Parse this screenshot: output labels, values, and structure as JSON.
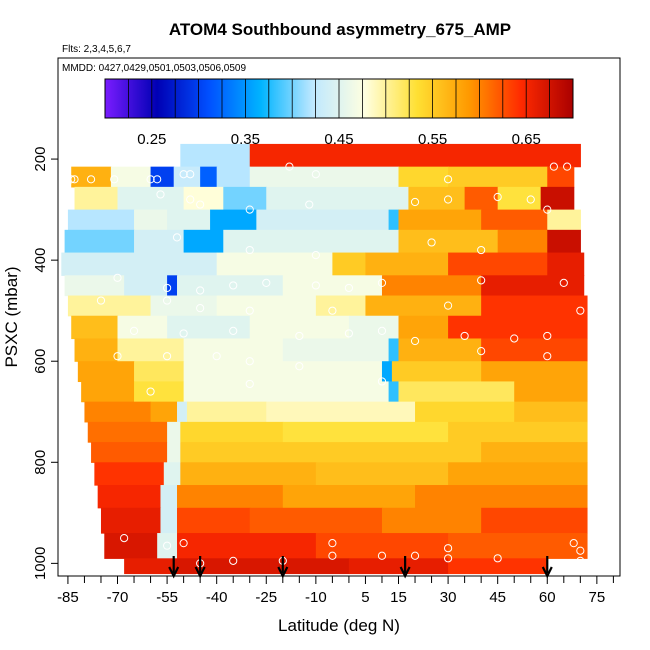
{
  "chart_data": {
    "type": "heatmap",
    "title": "ATOM4 Southbound asymmetry_675_AMP",
    "subtitle": "Flts: 2,3,4,5,6,7",
    "inset_label": "MMDD: 0427,0429,0501,0503,0506,0509",
    "xlabel": "Latitude (deg N)",
    "ylabel": "PSXC (mbar)",
    "xlim": [
      -88,
      82
    ],
    "ylim": [
      1025,
      0
    ],
    "x_ticks": [
      -85,
      -70,
      -55,
      -40,
      -25,
      -10,
      5,
      15,
      30,
      45,
      60,
      75
    ],
    "x_minor_ticks": [
      -80,
      -75,
      -65,
      -60,
      -50,
      -45,
      -35,
      -30,
      -20,
      -15,
      -5,
      0,
      10,
      20,
      25,
      35,
      40,
      50,
      55,
      65,
      70,
      80
    ],
    "y_ticks": [
      200,
      400,
      600,
      800,
      1000
    ],
    "colorbar": {
      "min": 0.2,
      "max": 0.7,
      "ticks": [
        0.25,
        0.35,
        0.45,
        0.55,
        0.65
      ],
      "tick_labels": [
        "0.25",
        "0.35",
        "0.45",
        "0.55",
        "0.65"
      ],
      "stops": [
        "#7a1cff",
        "#0000b4",
        "#0050ff",
        "#00b4ff",
        "#bfe8ff",
        "#ffffe0",
        "#ffe033",
        "#ff9900",
        "#ff2a00",
        "#aa0000"
      ]
    },
    "profile_arrows_lat": [
      -53,
      -45,
      -20,
      17,
      60
    ],
    "bands": [
      {
        "p": [
          170,
          215
        ],
        "segs": [
          [
            -51,
            -30,
            0.42
          ],
          [
            -30,
            70,
            0.65
          ]
        ]
      },
      {
        "p": [
          215,
          255
        ],
        "segs": [
          [
            -84,
            -72,
            0.57
          ],
          [
            -72,
            -60,
            0.47
          ],
          [
            -60,
            -53,
            0.3
          ],
          [
            -53,
            -45,
            0.43
          ],
          [
            -45,
            -40,
            0.32
          ],
          [
            -40,
            -30,
            0.42
          ],
          [
            -30,
            15,
            0.46
          ],
          [
            15,
            30,
            0.54
          ],
          [
            30,
            60,
            0.55
          ],
          [
            60,
            68,
            0.63
          ]
        ]
      },
      {
        "p": [
          255,
          300
        ],
        "segs": [
          [
            -83,
            -70,
            0.5
          ],
          [
            -70,
            -50,
            0.45
          ],
          [
            -50,
            -38,
            0.48
          ],
          [
            -38,
            -25,
            0.4
          ],
          [
            -25,
            18,
            0.45
          ],
          [
            18,
            35,
            0.56
          ],
          [
            35,
            45,
            0.62
          ],
          [
            45,
            58,
            0.53
          ],
          [
            58,
            68,
            0.68
          ]
        ]
      },
      {
        "p": [
          300,
          340
        ],
        "segs": [
          [
            -85,
            -65,
            0.42
          ],
          [
            -65,
            -55,
            0.46
          ],
          [
            -55,
            -42,
            0.45
          ],
          [
            -42,
            -28,
            0.36
          ],
          [
            -28,
            12,
            0.44
          ],
          [
            12,
            15,
            0.38
          ],
          [
            15,
            40,
            0.58
          ],
          [
            40,
            60,
            0.62
          ],
          [
            60,
            70,
            0.5
          ]
        ]
      },
      {
        "p": [
          340,
          385
        ],
        "segs": [
          [
            -86,
            -65,
            0.4
          ],
          [
            -65,
            -50,
            0.44
          ],
          [
            -50,
            -38,
            0.36
          ],
          [
            -38,
            15,
            0.45
          ],
          [
            15,
            45,
            0.56
          ],
          [
            45,
            60,
            0.6
          ],
          [
            60,
            70,
            0.68
          ]
        ]
      },
      {
        "p": [
          385,
          430
        ],
        "segs": [
          [
            -87,
            -60,
            0.44
          ],
          [
            -60,
            -40,
            0.44
          ],
          [
            -40,
            -5,
            0.47
          ],
          [
            -5,
            5,
            0.55
          ],
          [
            5,
            30,
            0.57
          ],
          [
            30,
            60,
            0.63
          ],
          [
            60,
            71,
            0.66
          ]
        ]
      },
      {
        "p": [
          430,
          470
        ],
        "segs": [
          [
            -86,
            -68,
            0.46
          ],
          [
            -68,
            -55,
            0.44
          ],
          [
            -55,
            -52,
            0.3
          ],
          [
            -52,
            -20,
            0.45
          ],
          [
            -20,
            10,
            0.47
          ],
          [
            10,
            40,
            0.6
          ],
          [
            40,
            71,
            0.66
          ]
        ]
      },
      {
        "p": [
          470,
          510
        ],
        "segs": [
          [
            -85,
            -60,
            0.5
          ],
          [
            -60,
            -40,
            0.46
          ],
          [
            -40,
            -10,
            0.47
          ],
          [
            -10,
            5,
            0.5
          ],
          [
            5,
            40,
            0.57
          ],
          [
            40,
            72,
            0.64
          ]
        ]
      },
      {
        "p": [
          510,
          555
        ],
        "segs": [
          [
            -84,
            -70,
            0.56
          ],
          [
            -70,
            -55,
            0.47
          ],
          [
            -55,
            -30,
            0.45
          ],
          [
            -30,
            0,
            0.47
          ],
          [
            0,
            15,
            0.46
          ],
          [
            15,
            30,
            0.58
          ],
          [
            30,
            72,
            0.64
          ]
        ]
      },
      {
        "p": [
          555,
          600
        ],
        "segs": [
          [
            -83,
            -70,
            0.57
          ],
          [
            -70,
            -50,
            0.5
          ],
          [
            -50,
            -20,
            0.47
          ],
          [
            -20,
            12,
            0.46
          ],
          [
            12,
            15,
            0.38
          ],
          [
            15,
            40,
            0.57
          ],
          [
            40,
            72,
            0.63
          ]
        ]
      },
      {
        "p": [
          600,
          640
        ],
        "segs": [
          [
            -82,
            -65,
            0.58
          ],
          [
            -65,
            -50,
            0.52
          ],
          [
            -50,
            10,
            0.47
          ],
          [
            10,
            13,
            0.36
          ],
          [
            13,
            40,
            0.55
          ],
          [
            40,
            72,
            0.58
          ]
        ]
      },
      {
        "p": [
          640,
          680
        ],
        "segs": [
          [
            -81,
            -65,
            0.58
          ],
          [
            -65,
            -50,
            0.53
          ],
          [
            -50,
            12,
            0.47
          ],
          [
            12,
            15,
            0.38
          ],
          [
            15,
            50,
            0.52
          ],
          [
            50,
            72,
            0.58
          ]
        ]
      },
      {
        "p": [
          680,
          720
        ],
        "segs": [
          [
            -80,
            -60,
            0.6
          ],
          [
            -60,
            -52,
            0.58
          ],
          [
            -52,
            -49,
            0.44
          ],
          [
            -49,
            -25,
            0.5
          ],
          [
            -25,
            20,
            0.49
          ],
          [
            20,
            50,
            0.54
          ],
          [
            50,
            72,
            0.56
          ]
        ]
      },
      {
        "p": [
          720,
          760
        ],
        "segs": [
          [
            -79,
            -55,
            0.61
          ],
          [
            -55,
            -51,
            0.46
          ],
          [
            -51,
            -20,
            0.54
          ],
          [
            -20,
            30,
            0.53
          ],
          [
            30,
            72,
            0.55
          ]
        ]
      },
      {
        "p": [
          760,
          800
        ],
        "segs": [
          [
            -78,
            -55,
            0.62
          ],
          [
            -55,
            -51,
            0.46
          ],
          [
            -51,
            0,
            0.55
          ],
          [
            0,
            40,
            0.55
          ],
          [
            40,
            72,
            0.57
          ]
        ]
      },
      {
        "p": [
          800,
          845
        ],
        "segs": [
          [
            -77,
            -56,
            0.64
          ],
          [
            -56,
            -51,
            0.45
          ],
          [
            -51,
            -10,
            0.57
          ],
          [
            -10,
            30,
            0.56
          ],
          [
            30,
            72,
            0.58
          ]
        ]
      },
      {
        "p": [
          845,
          890
        ],
        "segs": [
          [
            -76,
            -57,
            0.65
          ],
          [
            -57,
            -52,
            0.44
          ],
          [
            -52,
            -20,
            0.6
          ],
          [
            -20,
            20,
            0.58
          ],
          [
            20,
            72,
            0.6
          ]
        ]
      },
      {
        "p": [
          890,
          940
        ],
        "segs": [
          [
            -75,
            -57,
            0.66
          ],
          [
            -57,
            -52,
            0.44
          ],
          [
            -52,
            -30,
            0.63
          ],
          [
            -30,
            10,
            0.62
          ],
          [
            10,
            40,
            0.6
          ],
          [
            40,
            72,
            0.63
          ]
        ]
      },
      {
        "p": [
          940,
          990
        ],
        "segs": [
          [
            -74,
            -58,
            0.67
          ],
          [
            -58,
            -52,
            0.45
          ],
          [
            -52,
            -10,
            0.65
          ],
          [
            -10,
            30,
            0.63
          ],
          [
            30,
            72,
            0.62
          ]
        ]
      },
      {
        "p": [
          990,
          1020
        ],
        "segs": [
          [
            -68,
            -53,
            0.66
          ],
          [
            -53,
            0,
            0.67
          ],
          [
            0,
            30,
            0.66
          ],
          [
            30,
            60,
            0.64
          ]
        ]
      }
    ],
    "markers": [
      [
        -84,
        240
      ],
      [
        -83,
        240
      ],
      [
        -78,
        240
      ],
      [
        -71,
        240
      ],
      [
        -60,
        240
      ],
      [
        -58,
        240
      ],
      [
        -50,
        230
      ],
      [
        -48,
        230
      ],
      [
        -18,
        215
      ],
      [
        -10,
        230
      ],
      [
        30,
        240
      ],
      [
        62,
        215
      ],
      [
        66,
        215
      ],
      [
        -57,
        270
      ],
      [
        -48,
        280
      ],
      [
        -45,
        290
      ],
      [
        -30,
        300
      ],
      [
        -12,
        290
      ],
      [
        20,
        285
      ],
      [
        30,
        280
      ],
      [
        45,
        275
      ],
      [
        55,
        280
      ],
      [
        60,
        300
      ],
      [
        -52,
        355
      ],
      [
        -30,
        380
      ],
      [
        -10,
        390
      ],
      [
        25,
        365
      ],
      [
        40,
        380
      ],
      [
        -70,
        435
      ],
      [
        -55,
        455
      ],
      [
        -45,
        460
      ],
      [
        -35,
        450
      ],
      [
        -25,
        445
      ],
      [
        -10,
        450
      ],
      [
        0,
        455
      ],
      [
        10,
        445
      ],
      [
        40,
        440
      ],
      [
        65,
        445
      ],
      [
        -75,
        480
      ],
      [
        -55,
        480
      ],
      [
        -45,
        495
      ],
      [
        -30,
        500
      ],
      [
        -5,
        500
      ],
      [
        30,
        490
      ],
      [
        70,
        500
      ],
      [
        -65,
        540
      ],
      [
        -50,
        545
      ],
      [
        -35,
        540
      ],
      [
        -15,
        550
      ],
      [
        0,
        545
      ],
      [
        10,
        540
      ],
      [
        20,
        560
      ],
      [
        35,
        550
      ],
      [
        50,
        555
      ],
      [
        60,
        550
      ],
      [
        -70,
        590
      ],
      [
        -55,
        590
      ],
      [
        -40,
        590
      ],
      [
        -30,
        600
      ],
      [
        -15,
        610
      ],
      [
        40,
        580
      ],
      [
        60,
        590
      ],
      [
        -60,
        660
      ],
      [
        -30,
        645
      ],
      [
        10,
        640
      ],
      [
        -68,
        950
      ],
      [
        -55,
        965
      ],
      [
        -50,
        960
      ],
      [
        -45,
        1000
      ],
      [
        -35,
        995
      ],
      [
        -20,
        995
      ],
      [
        -5,
        960
      ],
      [
        -5,
        985
      ],
      [
        10,
        985
      ],
      [
        20,
        985
      ],
      [
        30,
        970
      ],
      [
        30,
        990
      ],
      [
        45,
        990
      ],
      [
        68,
        960
      ],
      [
        70,
        975
      ],
      [
        70,
        995
      ]
    ]
  }
}
